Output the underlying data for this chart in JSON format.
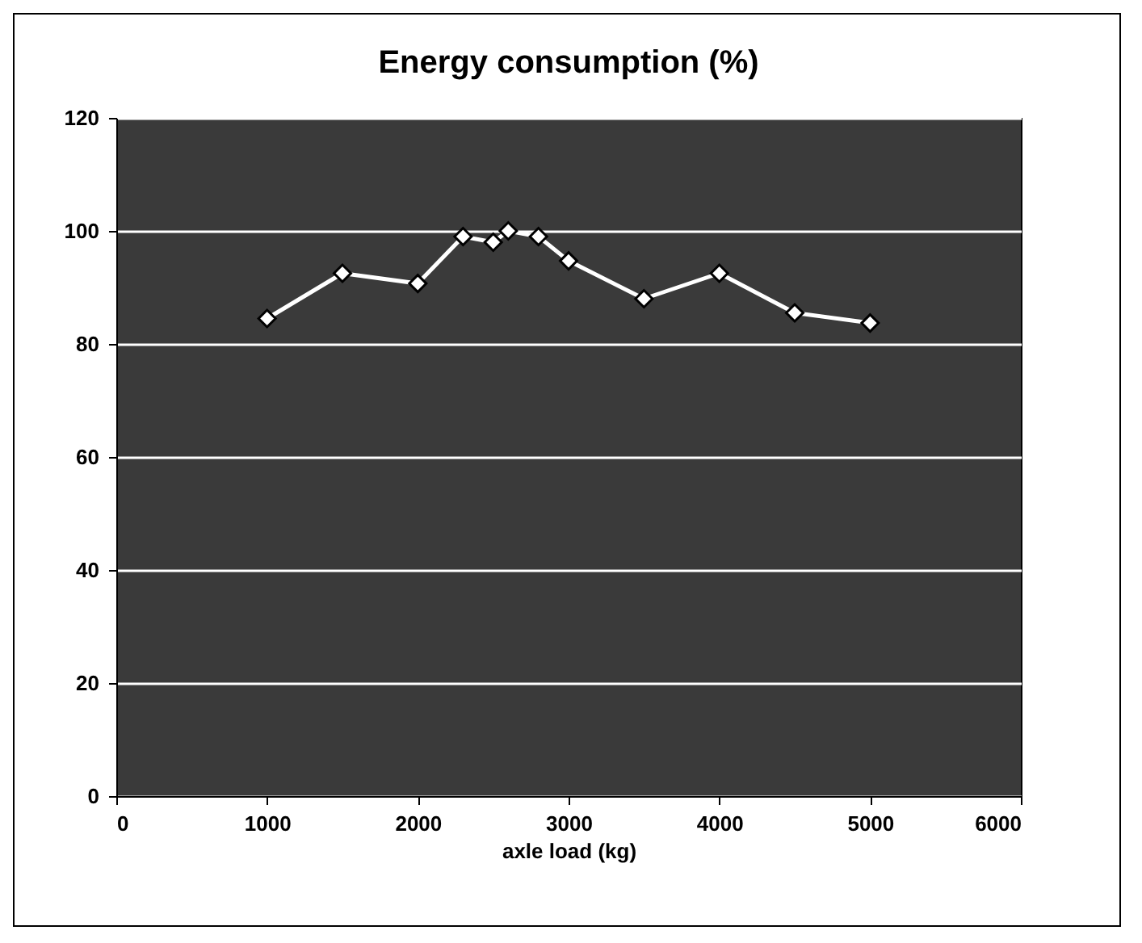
{
  "chart_data": {
    "type": "line",
    "title": "Energy consumption (%)",
    "xlabel": "axle load (kg)",
    "x": [
      1000,
      1500,
      2000,
      2300,
      2500,
      2600,
      2800,
      3000,
      3500,
      4000,
      4500,
      5000
    ],
    "series": [
      {
        "color": "#ffffff",
        "values": [
          84.5,
          92.5,
          90.7,
          99,
          98,
          100,
          99,
          94.7,
          88,
          92.5,
          85.5,
          83.7
        ]
      }
    ],
    "xlim": [
      0,
      6000
    ],
    "xticks": [
      0,
      1000,
      2000,
      3000,
      4000,
      5000,
      6000
    ],
    "ylim": [
      0,
      120
    ],
    "yticks": [
      0,
      20,
      40,
      60,
      80,
      100,
      120
    ],
    "grid": "y",
    "marker": "diamond",
    "line_style": "solid"
  }
}
